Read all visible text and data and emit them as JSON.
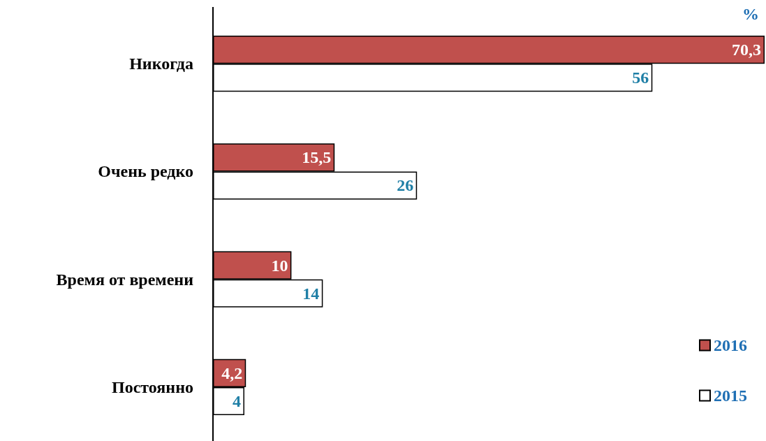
{
  "chart_data": {
    "type": "bar",
    "orientation": "horizontal",
    "categories": [
      "Никогда",
      "Очень редко",
      "Время от времени",
      "Постоянно"
    ],
    "series": [
      {
        "name": "2016",
        "color": "#c0504d",
        "values": [
          70.3,
          15.5,
          10,
          4.2
        ],
        "value_labels": [
          "70,3",
          "15,5",
          "10",
          "4,2"
        ]
      },
      {
        "name": "2015",
        "color": "#ffffff",
        "values": [
          56,
          26,
          14,
          4
        ],
        "value_labels": [
          "56",
          "26",
          "14",
          "4"
        ]
      }
    ],
    "annotations": [
      "%"
    ],
    "legend": "bottom right",
    "grid": false
  }
}
